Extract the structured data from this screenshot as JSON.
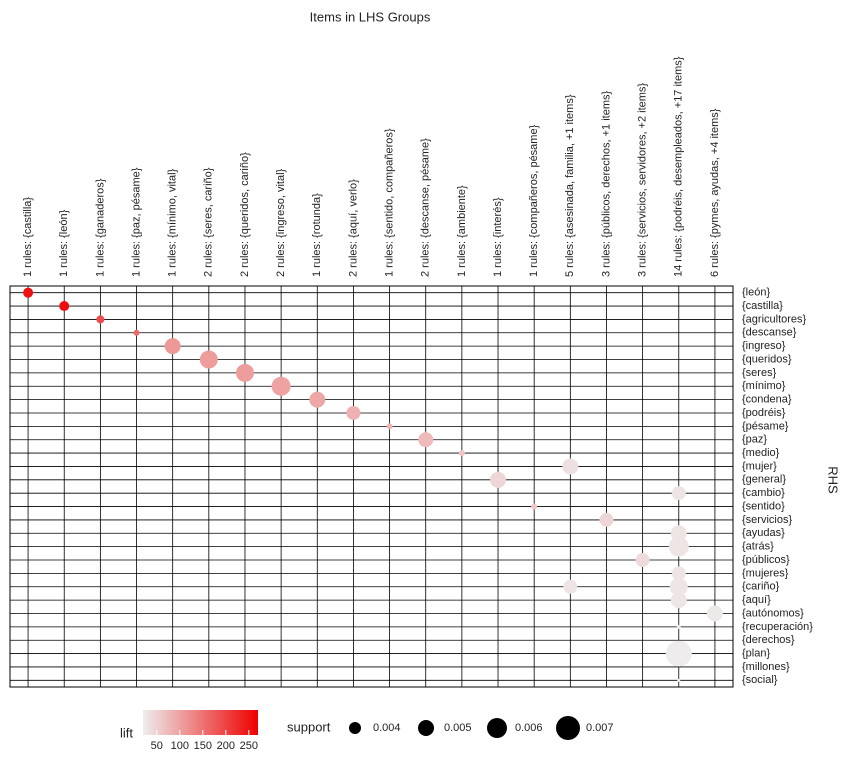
{
  "chart_data": {
    "type": "grouped_matrix",
    "title": "Items in LHS Groups",
    "y_label": "RHS",
    "columns": [
      "1 rules: {castilla}",
      "1 rules: {león}",
      "1 rules: {ganaderos}",
      "1 rules: {paz, pésame}",
      "1 rules: {mínimo, vital}",
      "2 rules: {seres, cariño}",
      "2 rules: {queridos, cariño}",
      "2 rules: {ingreso, vital}",
      "1 rules: {rotunda}",
      "2 rules: {aquí, verlo}",
      "1 rules: {sentido, compañeros}",
      "2 rules: {descanse, pésame}",
      "1 rules: {ambiente}",
      "1 rules: {interés}",
      "1 rules: {compañeros, pésame}",
      "5 rules: {asesinada, familia, +1 items}",
      "3 rules: {públicos, derechos, +1 items}",
      "3 rules: {servicios, servidores, +2 items}",
      "14 rules: {podréis, desempleados, +17 items}",
      "6 rules: {pymes, ayudas, +4 items}"
    ],
    "rows": [
      "{león}",
      "{castilla}",
      "{agricultores}",
      "{descanse}",
      "{ingreso}",
      "{queridos}",
      "{seres}",
      "{mínimo}",
      "{condena}",
      "{podréis}",
      "{pésame}",
      "{paz}",
      "{medio}",
      "{mujer}",
      "{general}",
      "{cambio}",
      "{sentido}",
      "{servicios}",
      "{ayudas}",
      "{atrás}",
      "{públicos}",
      "{mujeres}",
      "{cariño}",
      "{aquí}",
      "{autónomos}",
      "{recuperación}",
      "{derechos}",
      "{plan}",
      "{millones}",
      "{social}"
    ],
    "points": [
      {
        "lhs": "1 rules: {castilla}",
        "rhs": "{león}",
        "support": 0.0035,
        "lift": 250
      },
      {
        "lhs": "1 rules: {león}",
        "rhs": "{castilla}",
        "support": 0.0035,
        "lift": 255
      },
      {
        "lhs": "1 rules: {ganaderos}",
        "rhs": "{agricultores}",
        "support": 0.003,
        "lift": 190
      },
      {
        "lhs": "1 rules: {paz, pésame}",
        "rhs": "{descanse}",
        "support": 0.0025,
        "lift": 160
      },
      {
        "lhs": "1 rules: {mínimo, vital}",
        "rhs": "{ingreso}",
        "support": 0.005,
        "lift": 110
      },
      {
        "lhs": "2 rules: {seres, cariño}",
        "rhs": "{queridos}",
        "support": 0.0055,
        "lift": 105
      },
      {
        "lhs": "2 rules: {queridos, cariño}",
        "rhs": "{seres}",
        "support": 0.0055,
        "lift": 105
      },
      {
        "lhs": "2 rules: {ingreso, vital}",
        "rhs": "{mínimo}",
        "support": 0.00575,
        "lift": 100
      },
      {
        "lhs": "1 rules: {rotunda}",
        "rhs": "{condena}",
        "support": 0.005,
        "lift": 95
      },
      {
        "lhs": "2 rules: {aquí, verlo}",
        "rhs": "{podréis}",
        "support": 0.0045,
        "lift": 85
      },
      {
        "lhs": "1 rules: {sentido, compañeros}",
        "rhs": "{pésame}",
        "support": 0.0025,
        "lift": 80
      },
      {
        "lhs": "2 rules: {descanse, pésame}",
        "rhs": "{paz}",
        "support": 0.00475,
        "lift": 75
      },
      {
        "lhs": "1 rules: {ambiente}",
        "rhs": "{medio}",
        "support": 0.0025,
        "lift": 65
      },
      {
        "lhs": "1 rules: {interés}",
        "rhs": "{general}",
        "support": 0.005,
        "lift": 45
      },
      {
        "lhs": "1 rules: {compañeros, pésame}",
        "rhs": "{sentido}",
        "support": 0.0025,
        "lift": 60
      },
      {
        "lhs": "5 rules: {asesinada, familia, +1 items}",
        "rhs": "{mujer}",
        "support": 0.005,
        "lift": 35
      },
      {
        "lhs": "5 rules: {asesinada, familia, +1 items}",
        "rhs": "{cariño}",
        "support": 0.0045,
        "lift": 30
      },
      {
        "lhs": "3 rules: {públicos, derechos, +1 items}",
        "rhs": "{servicios}",
        "support": 0.0045,
        "lift": 45
      },
      {
        "lhs": "3 rules: {servicios, servidores, +2 items}",
        "rhs": "{públicos}",
        "support": 0.0045,
        "lift": 40
      },
      {
        "lhs": "14 rules: {podréis, desempleados, +17 items}",
        "rhs": "{cambio}",
        "support": 0.0045,
        "lift": 30
      },
      {
        "lhs": "14 rules: {podréis, desempleados, +17 items}",
        "rhs": "{ayudas}",
        "support": 0.005,
        "lift": 30
      },
      {
        "lhs": "14 rules: {podréis, desempleados, +17 items}",
        "rhs": "{atrás}",
        "support": 0.006,
        "lift": 30
      },
      {
        "lhs": "14 rules: {podréis, desempleados, +17 items}",
        "rhs": "{mujeres}",
        "support": 0.0045,
        "lift": 30
      },
      {
        "lhs": "14 rules: {podréis, desempleados, +17 items}",
        "rhs": "{cariño}",
        "support": 0.0055,
        "lift": 28
      },
      {
        "lhs": "14 rules: {podréis, desempleados, +17 items}",
        "rhs": "{aquí}",
        "support": 0.005,
        "lift": 28
      },
      {
        "lhs": "14 rules: {podréis, desempleados, +17 items}",
        "rhs": "{recuperación}",
        "support": 0.002,
        "lift": 25
      },
      {
        "lhs": "14 rules: {podréis, desempleados, +17 items}",
        "rhs": "{plan}",
        "support": 0.0075,
        "lift": 22
      },
      {
        "lhs": "14 rules: {podréis, desempleados, +17 items}",
        "rhs": "{social}",
        "support": 0.00175,
        "lift": 22
      },
      {
        "lhs": "6 rules: {pymes, ayudas, +4 items}",
        "rhs": "{autónomos}",
        "support": 0.005,
        "lift": 25
      }
    ],
    "color_legend_title": "lift",
    "lift_lim": [
      20,
      270
    ],
    "lift_ticks": [
      50,
      100,
      150,
      200,
      250
    ],
    "color_low": "#eeeeee",
    "color_high": "#ee0000",
    "size_legend_title": "support",
    "support_ticks": [
      0.004,
      0.005,
      0.006,
      0.007
    ]
  }
}
